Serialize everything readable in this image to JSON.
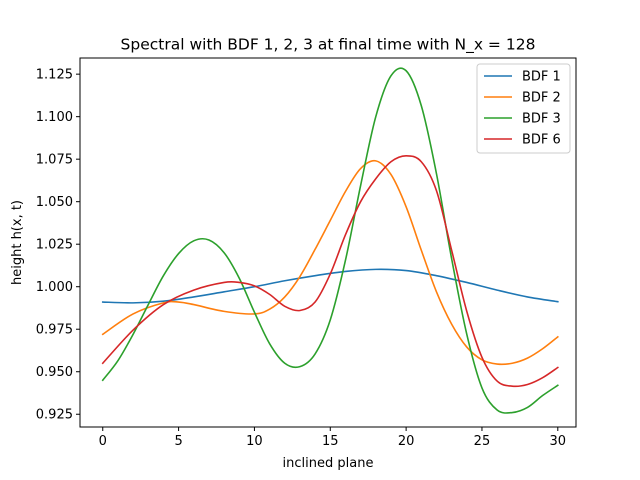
{
  "chart_data": {
    "type": "line",
    "title": "Spectral with BDF 1, 2, 3 at final time with N_x = 128",
    "xlabel": "inclined plane",
    "ylabel": "height h(x, t)",
    "xlim": [
      -1.5,
      31.2
    ],
    "ylim": [
      0.9175,
      1.1345
    ],
    "xticks": [
      0,
      5,
      10,
      15,
      20,
      25,
      30
    ],
    "yticks": [
      0.925,
      0.95,
      0.975,
      1.0,
      1.025,
      1.05,
      1.075,
      1.1,
      1.125
    ],
    "xtick_labels": [
      "0",
      "5",
      "10",
      "15",
      "20",
      "25",
      "30"
    ],
    "ytick_labels": [
      "0.925",
      "0.950",
      "0.975",
      "1.000",
      "1.025",
      "1.050",
      "1.075",
      "1.100",
      "1.125"
    ],
    "grid": false,
    "legend_position": "upper-right",
    "series": [
      {
        "name": "BDF 1",
        "color": "#1f77b4",
        "x": [
          0,
          2,
          4,
          6,
          8,
          10,
          12,
          14,
          16,
          18,
          20,
          22,
          24,
          26,
          28,
          30
        ],
        "y": [
          0.991,
          0.9905,
          0.9915,
          0.994,
          0.997,
          1.0,
          1.0035,
          1.0065,
          1.009,
          1.0102,
          1.0095,
          1.0065,
          1.0025,
          0.998,
          0.994,
          0.9912
        ]
      },
      {
        "name": "BDF 2",
        "color": "#ff7f0e",
        "x": [
          0,
          2,
          4,
          5,
          6,
          8,
          10,
          11,
          12,
          13,
          14,
          15,
          16,
          17,
          18,
          19,
          20,
          21,
          22,
          23,
          24,
          25,
          26,
          27,
          28,
          29,
          30
        ],
        "y": [
          0.972,
          0.984,
          0.9905,
          0.991,
          0.9895,
          0.9855,
          0.984,
          0.9868,
          0.994,
          1.006,
          1.022,
          1.039,
          1.056,
          1.0695,
          1.074,
          1.066,
          1.047,
          1.0215,
          0.997,
          0.978,
          0.9645,
          0.957,
          0.9545,
          0.955,
          0.958,
          0.9635,
          0.9705
        ]
      },
      {
        "name": "BDF 3",
        "color": "#2ca02c",
        "x": [
          0,
          1,
          2,
          3,
          4,
          5,
          6,
          7,
          8,
          9,
          10,
          11,
          12,
          13,
          14,
          15,
          16,
          17,
          18,
          19,
          20,
          21,
          22,
          23,
          24,
          25,
          26,
          27,
          28,
          29,
          30
        ],
        "y": [
          0.945,
          0.9565,
          0.972,
          0.9895,
          1.0065,
          1.0195,
          1.027,
          1.0275,
          1.02,
          1.005,
          0.985,
          0.9665,
          0.955,
          0.953,
          0.9605,
          0.9805,
          1.0155,
          1.0595,
          1.1,
          1.124,
          1.127,
          1.1065,
          1.0665,
          1.0165,
          0.972,
          0.9405,
          0.9275,
          0.926,
          0.929,
          0.936,
          0.942
        ]
      },
      {
        "name": "BDF 6",
        "color": "#d62728",
        "x": [
          0,
          2,
          4,
          6,
          8,
          9,
          10,
          11,
          12,
          13,
          14,
          15,
          16,
          17,
          18,
          19,
          20,
          21,
          22,
          23,
          24,
          25,
          26,
          27,
          28,
          29,
          30
        ],
        "y": [
          0.955,
          0.9745,
          0.9895,
          0.998,
          1.0025,
          1.0025,
          1.0005,
          0.9955,
          0.9885,
          0.986,
          0.991,
          1.0075,
          1.0305,
          1.05,
          1.0635,
          1.0735,
          1.077,
          1.0735,
          1.0565,
          1.0215,
          0.9855,
          0.9585,
          0.9445,
          0.9415,
          0.9425,
          0.9465,
          0.9525
        ]
      }
    ]
  }
}
